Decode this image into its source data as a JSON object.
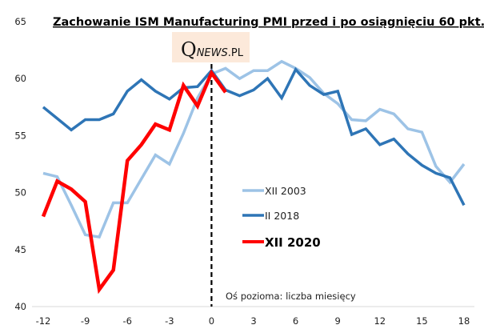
{
  "chart_data": {
    "type": "line",
    "title": "Zachowanie  ISM Manufacturing  PMI przed i po osiągnięciu  60 pkt.",
    "watermark": {
      "q": "Q",
      "news": "NEWS",
      "pl": ".PL"
    },
    "annotation": "Oś pozioma: liczba miesięcy",
    "xlabel": "",
    "ylabel": "",
    "x": [
      -12,
      -11,
      -10,
      -9,
      -8,
      -7,
      -6,
      -5,
      -4,
      -3,
      -2,
      -1,
      0,
      1,
      2,
      3,
      4,
      5,
      6,
      7,
      8,
      9,
      10,
      11,
      12,
      13,
      14,
      15,
      16,
      17,
      18
    ],
    "xticks": [
      -12,
      -9,
      -6,
      -3,
      0,
      3,
      6,
      9,
      12,
      15,
      18
    ],
    "xtick_labels": [
      "-12",
      "-9",
      "-6",
      "-3",
      "0",
      "3",
      "6",
      "9",
      "12",
      "15",
      "18"
    ],
    "yticks": [
      40,
      45,
      50,
      55,
      60,
      65
    ],
    "ytick_labels": [
      "40",
      "45",
      "50",
      "55",
      "60",
      "65"
    ],
    "xlim": [
      -12,
      18
    ],
    "ylim": [
      40,
      65
    ],
    "grid": false,
    "reference_line": {
      "x": 0,
      "style": "dashed",
      "color": "#000000"
    },
    "legend_position": "center-right",
    "series": [
      {
        "name": "XII 2003",
        "color": "#9DC3E6",
        "x_start": -12,
        "values": [
          51.7,
          51.4,
          48.9,
          46.3,
          46.1,
          49.1,
          49.1,
          51.2,
          53.3,
          52.5,
          55.2,
          58.3,
          60.4,
          60.9,
          60.0,
          60.7,
          60.7,
          61.5,
          60.9,
          60.1,
          58.7,
          57.8,
          56.4,
          56.3,
          57.3,
          56.9,
          55.6,
          55.3,
          52.3,
          50.9,
          52.5
        ]
      },
      {
        "name": "II 2018",
        "color": "#2E75B6",
        "x_start": -12,
        "values": [
          57.5,
          56.5,
          55.5,
          56.4,
          56.4,
          56.9,
          58.9,
          59.9,
          58.9,
          58.2,
          59.2,
          59.3,
          60.7,
          59.0,
          58.5,
          59.0,
          60.0,
          58.3,
          60.8,
          59.4,
          58.6,
          58.9,
          55.1,
          55.6,
          54.2,
          54.7,
          53.4,
          52.4,
          51.7,
          51.3,
          48.9
        ]
      },
      {
        "name": "XII 2020",
        "color": "#FF0000",
        "x_start": -12,
        "bold_legend": true,
        "values": [
          47.9,
          51.0,
          50.3,
          49.2,
          41.5,
          43.2,
          52.8,
          54.2,
          56.0,
          55.5,
          59.4,
          57.6,
          60.5,
          58.8
        ]
      }
    ]
  }
}
